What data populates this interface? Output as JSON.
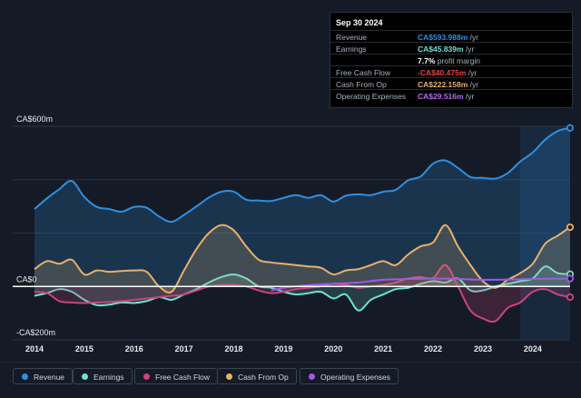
{
  "tooltip": {
    "date": "Sep 30 2024",
    "rows": [
      {
        "label": "Revenue",
        "value": "CA$593.988m",
        "unit": " /yr",
        "color": "#2f8fe0"
      },
      {
        "label": "Earnings",
        "value": "CA$45.839m",
        "unit": " /yr",
        "color": "#6fe0d2"
      },
      {
        "label": "",
        "value": "7.7%",
        "unit": " profit margin",
        "color": "#ffffff"
      },
      {
        "label": "Free Cash Flow",
        "value": "-CA$40.475m",
        "unit": " /yr",
        "color": "#e8424a"
      },
      {
        "label": "Cash From Op",
        "value": "CA$222.158m",
        "unit": " /yr",
        "color": "#e8b06a"
      },
      {
        "label": "Operating Expenses",
        "value": "CA$29.516m",
        "unit": " /yr",
        "color": "#b56cf0"
      }
    ]
  },
  "legend": [
    {
      "label": "Revenue",
      "color": "#2f8fe0"
    },
    {
      "label": "Earnings",
      "color": "#6fe0d2"
    },
    {
      "label": "Free Cash Flow",
      "color": "#c9457a"
    },
    {
      "label": "Cash From Op",
      "color": "#e8b06a"
    },
    {
      "label": "Operating Expenses",
      "color": "#a458e6"
    }
  ],
  "chart_data": {
    "type": "area",
    "title": "",
    "xlabel": "",
    "ylabel": "",
    "y_tick_labels": [
      "CA$600m",
      "CA$0",
      "-CA$200m"
    ],
    "x_tick_labels": [
      "2014",
      "2015",
      "2016",
      "2017",
      "2018",
      "2019",
      "2020",
      "2021",
      "2022",
      "2023",
      "2024"
    ],
    "xlim": [
      2014.0,
      2024.75
    ],
    "ylim": [
      -200,
      600
    ],
    "forecast_highlight_start": 2023.75,
    "series": [
      {
        "name": "Revenue",
        "color": "#2f8fe0",
        "fill": true,
        "x": [
          2014.0,
          2014.25,
          2014.5,
          2014.75,
          2015.0,
          2015.25,
          2015.5,
          2015.75,
          2016.0,
          2016.25,
          2016.5,
          2016.75,
          2017.0,
          2017.25,
          2017.5,
          2017.75,
          2018.0,
          2018.25,
          2018.5,
          2018.75,
          2019.0,
          2019.25,
          2019.5,
          2019.75,
          2020.0,
          2020.25,
          2020.5,
          2020.75,
          2021.0,
          2021.25,
          2021.5,
          2021.75,
          2022.0,
          2022.25,
          2022.5,
          2022.75,
          2023.0,
          2023.25,
          2023.5,
          2023.75,
          2024.0,
          2024.25,
          2024.5,
          2024.75
        ],
        "y": [
          290,
          330,
          365,
          395,
          335,
          298,
          290,
          280,
          298,
          295,
          262,
          242,
          268,
          300,
          333,
          355,
          355,
          325,
          322,
          320,
          332,
          342,
          332,
          342,
          318,
          340,
          345,
          342,
          355,
          362,
          398,
          412,
          460,
          472,
          444,
          410,
          407,
          404,
          425,
          468,
          502,
          550,
          582,
          594
        ]
      },
      {
        "name": "Earnings",
        "color": "#6fe0d2",
        "fill": true,
        "x": [
          2014.0,
          2014.25,
          2014.5,
          2014.75,
          2015.0,
          2015.25,
          2015.5,
          2015.75,
          2016.0,
          2016.25,
          2016.5,
          2016.75,
          2017.0,
          2017.25,
          2017.5,
          2017.75,
          2018.0,
          2018.25,
          2018.5,
          2018.75,
          2019.0,
          2019.25,
          2019.5,
          2019.75,
          2020.0,
          2020.25,
          2020.5,
          2020.75,
          2021.0,
          2021.25,
          2021.5,
          2021.75,
          2022.0,
          2022.25,
          2022.5,
          2022.75,
          2023.0,
          2023.25,
          2023.5,
          2023.75,
          2024.0,
          2024.25,
          2024.5,
          2024.75
        ],
        "y": [
          -35,
          -25,
          -10,
          -20,
          -50,
          -70,
          -68,
          -60,
          -62,
          -55,
          -40,
          -50,
          -30,
          -10,
          15,
          35,
          45,
          30,
          0,
          -5,
          -20,
          -30,
          -25,
          -20,
          -45,
          -30,
          -90,
          -50,
          -30,
          -10,
          -5,
          10,
          20,
          15,
          30,
          -15,
          -15,
          0,
          10,
          20,
          30,
          75,
          50,
          46
        ]
      },
      {
        "name": "Free Cash Flow",
        "color": "#c9457a",
        "fill": true,
        "x": [
          2014.0,
          2014.25,
          2014.5,
          2014.75,
          2015.0,
          2015.25,
          2015.5,
          2015.75,
          2016.0,
          2016.25,
          2016.5,
          2016.75,
          2017.0,
          2017.25,
          2017.5,
          2017.75,
          2018.0,
          2018.25,
          2018.5,
          2018.75,
          2019.0,
          2019.25,
          2019.5,
          2019.75,
          2020.0,
          2020.25,
          2020.5,
          2020.75,
          2021.0,
          2021.25,
          2021.5,
          2021.75,
          2022.0,
          2022.25,
          2022.5,
          2022.75,
          2023.0,
          2023.25,
          2023.5,
          2023.75,
          2024.0,
          2024.25,
          2024.5,
          2024.75
        ],
        "y": [
          -20,
          -25,
          -55,
          -60,
          -62,
          -60,
          -58,
          -55,
          -50,
          -45,
          -40,
          -35,
          -30,
          -15,
          0,
          5,
          5,
          0,
          -15,
          -25,
          -20,
          -10,
          -5,
          0,
          10,
          5,
          -5,
          0,
          5,
          15,
          30,
          35,
          32,
          80,
          0,
          -90,
          -120,
          -130,
          -80,
          -60,
          -20,
          -10,
          -30,
          -40
        ]
      },
      {
        "name": "Cash From Op",
        "color": "#e8b06a",
        "fill": true,
        "x": [
          2014.0,
          2014.25,
          2014.5,
          2014.75,
          2015.0,
          2015.25,
          2015.5,
          2015.75,
          2016.0,
          2016.25,
          2016.5,
          2016.75,
          2017.0,
          2017.25,
          2017.5,
          2017.75,
          2018.0,
          2018.25,
          2018.5,
          2018.75,
          2019.0,
          2019.25,
          2019.5,
          2019.75,
          2020.0,
          2020.25,
          2020.5,
          2020.75,
          2021.0,
          2021.25,
          2021.5,
          2021.75,
          2022.0,
          2022.25,
          2022.5,
          2022.75,
          2023.0,
          2023.25,
          2023.5,
          2023.75,
          2024.0,
          2024.25,
          2024.5,
          2024.75
        ],
        "y": [
          65,
          95,
          85,
          100,
          45,
          60,
          55,
          58,
          60,
          55,
          0,
          -20,
          60,
          140,
          200,
          230,
          210,
          150,
          100,
          90,
          85,
          80,
          75,
          70,
          45,
          60,
          65,
          80,
          95,
          80,
          120,
          150,
          165,
          230,
          150,
          80,
          20,
          -5,
          25,
          50,
          85,
          160,
          190,
          222
        ]
      },
      {
        "name": "Operating Expenses",
        "color": "#a458e6",
        "fill": false,
        "x": [
          2018.75,
          2019.0,
          2019.5,
          2020.0,
          2020.5,
          2021.0,
          2021.5,
          2022.0,
          2022.5,
          2023.0,
          2023.5,
          2024.0,
          2024.5,
          2024.75
        ],
        "y": [
          -15,
          -5,
          5,
          10,
          15,
          25,
          28,
          30,
          28,
          25,
          26,
          28,
          29,
          29.5
        ]
      }
    ]
  }
}
